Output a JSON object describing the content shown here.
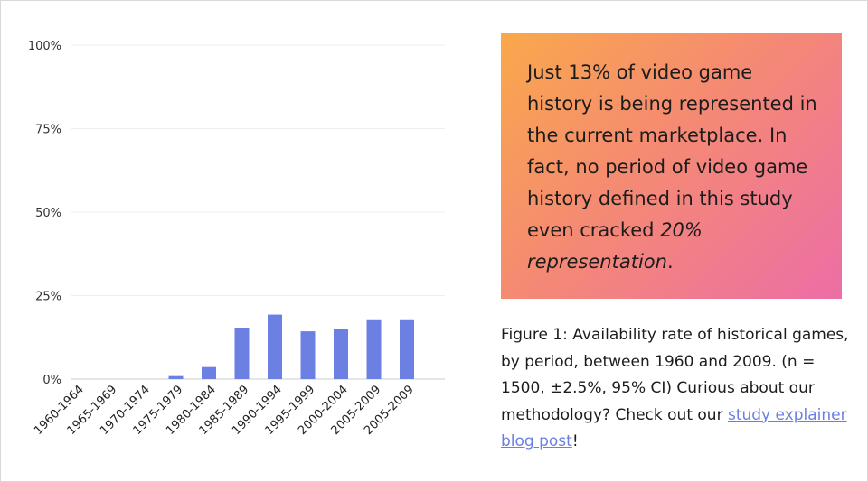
{
  "chart_data": {
    "type": "bar",
    "categories": [
      "1960-1964",
      "1965-1969",
      "1970-1974",
      "1975-1979",
      "1980-1984",
      "1985-1989",
      "1990-1994",
      "1995-1999",
      "2000-2004",
      "2005-2009",
      "2005-2009"
    ],
    "values": [
      0,
      0,
      0,
      0.9,
      3.6,
      15.4,
      19.3,
      14.3,
      15.0,
      17.9,
      17.9
    ],
    "y_ticks": [
      "0%",
      "25%",
      "50%",
      "75%",
      "100%"
    ],
    "ylim": [
      0,
      100
    ],
    "title": "",
    "xlabel": "",
    "ylabel": "",
    "grid": true,
    "bar_color": "#6c7fe3"
  },
  "callout": {
    "text_main": "Just 13% of video game history is being represented in the current marketplace. In fact, no period of video game history defined in this study even cracked ",
    "text_emphasis": "20% representation",
    "text_end": "."
  },
  "caption": {
    "text": "Figure 1: Availability rate of historical games, by period, between 1960 and 2009. (n = 1500, ±2.5%, 95% CI) Curious about our methodology? Check out our ",
    "link_text": "study explainer blog post",
    "text_end": "!"
  },
  "colors": {
    "gradient_start": "#f9a84b",
    "gradient_end": "#ec6ea6",
    "link": "#6a7fe0"
  }
}
